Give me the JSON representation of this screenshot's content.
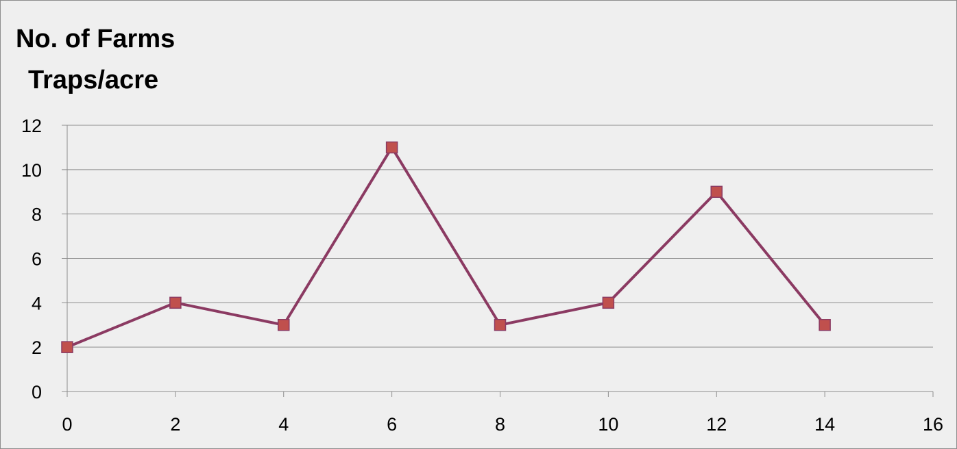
{
  "chart_data": {
    "type": "line",
    "title_lines": [
      "No. of Farms",
      "Traps/acre"
    ],
    "x": [
      0,
      2,
      4,
      6,
      8,
      10,
      12,
      14
    ],
    "series": [
      {
        "values": [
          2,
          4,
          3,
          11,
          3,
          4,
          9,
          3
        ]
      }
    ],
    "xlim": [
      0,
      16
    ],
    "ylim": [
      0,
      12
    ],
    "xticks": [
      0,
      2,
      4,
      6,
      8,
      10,
      12,
      14,
      16
    ],
    "yticks": [
      0,
      2,
      4,
      6,
      8,
      10,
      12
    ],
    "grid": "horizontal",
    "legend": "none",
    "colors": {
      "line": "#8b3a62",
      "marker_fill": "#c0504d",
      "marker_edge": "#8b3a62",
      "grid": "#8c8c8c",
      "background": "#efefef"
    }
  }
}
